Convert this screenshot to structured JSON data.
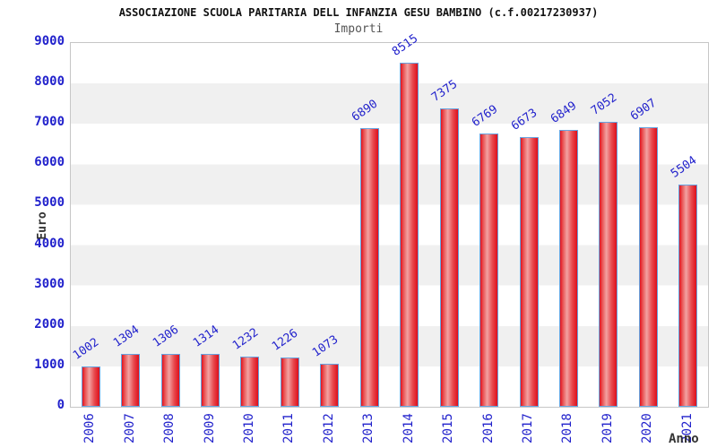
{
  "header": {
    "title": "ASSOCIAZIONE SCUOLA PARITARIA DELL INFANZIA GESU BAMBINO (c.f.00217230937)",
    "subtitle": "Importi"
  },
  "axes": {
    "y_title": "Euro",
    "x_title": "Anno"
  },
  "colors": {
    "axis_text": "#2222cc",
    "bar_edge_red": "#e2121e",
    "bar_center_pink": "#f2a2a2",
    "bar_border_blue": "#66a3e0",
    "band_gray": "#f0f0f0",
    "band_white": "#ffffff",
    "plot_border": "#c6c6c6",
    "title_text": "#111111",
    "subtitle_text": "#555555",
    "axis_title_text": "#333333"
  },
  "chart_data": {
    "type": "bar",
    "title": "ASSOCIAZIONE SCUOLA PARITARIA DELL INFANZIA GESU BAMBINO (c.f.00217230937)",
    "subtitle": "Importi",
    "xlabel": "Anno",
    "ylabel": "Euro",
    "categories": [
      "2006",
      "2007",
      "2008",
      "2009",
      "2010",
      "2011",
      "2012",
      "2013",
      "2014",
      "2015",
      "2016",
      "2017",
      "2018",
      "2019",
      "2020",
      "2021"
    ],
    "values": [
      1002,
      1304,
      1306,
      1314,
      1232,
      1226,
      1073,
      6890,
      8515,
      7375,
      6769,
      6673,
      6849,
      7052,
      6907,
      5504
    ],
    "ylim": [
      0,
      9000
    ],
    "yticks": [
      0,
      1000,
      2000,
      3000,
      4000,
      5000,
      6000,
      7000,
      8000,
      9000
    ],
    "grid": "alternating horizontal bands",
    "legend": "none",
    "bar_labels_shown": true
  }
}
